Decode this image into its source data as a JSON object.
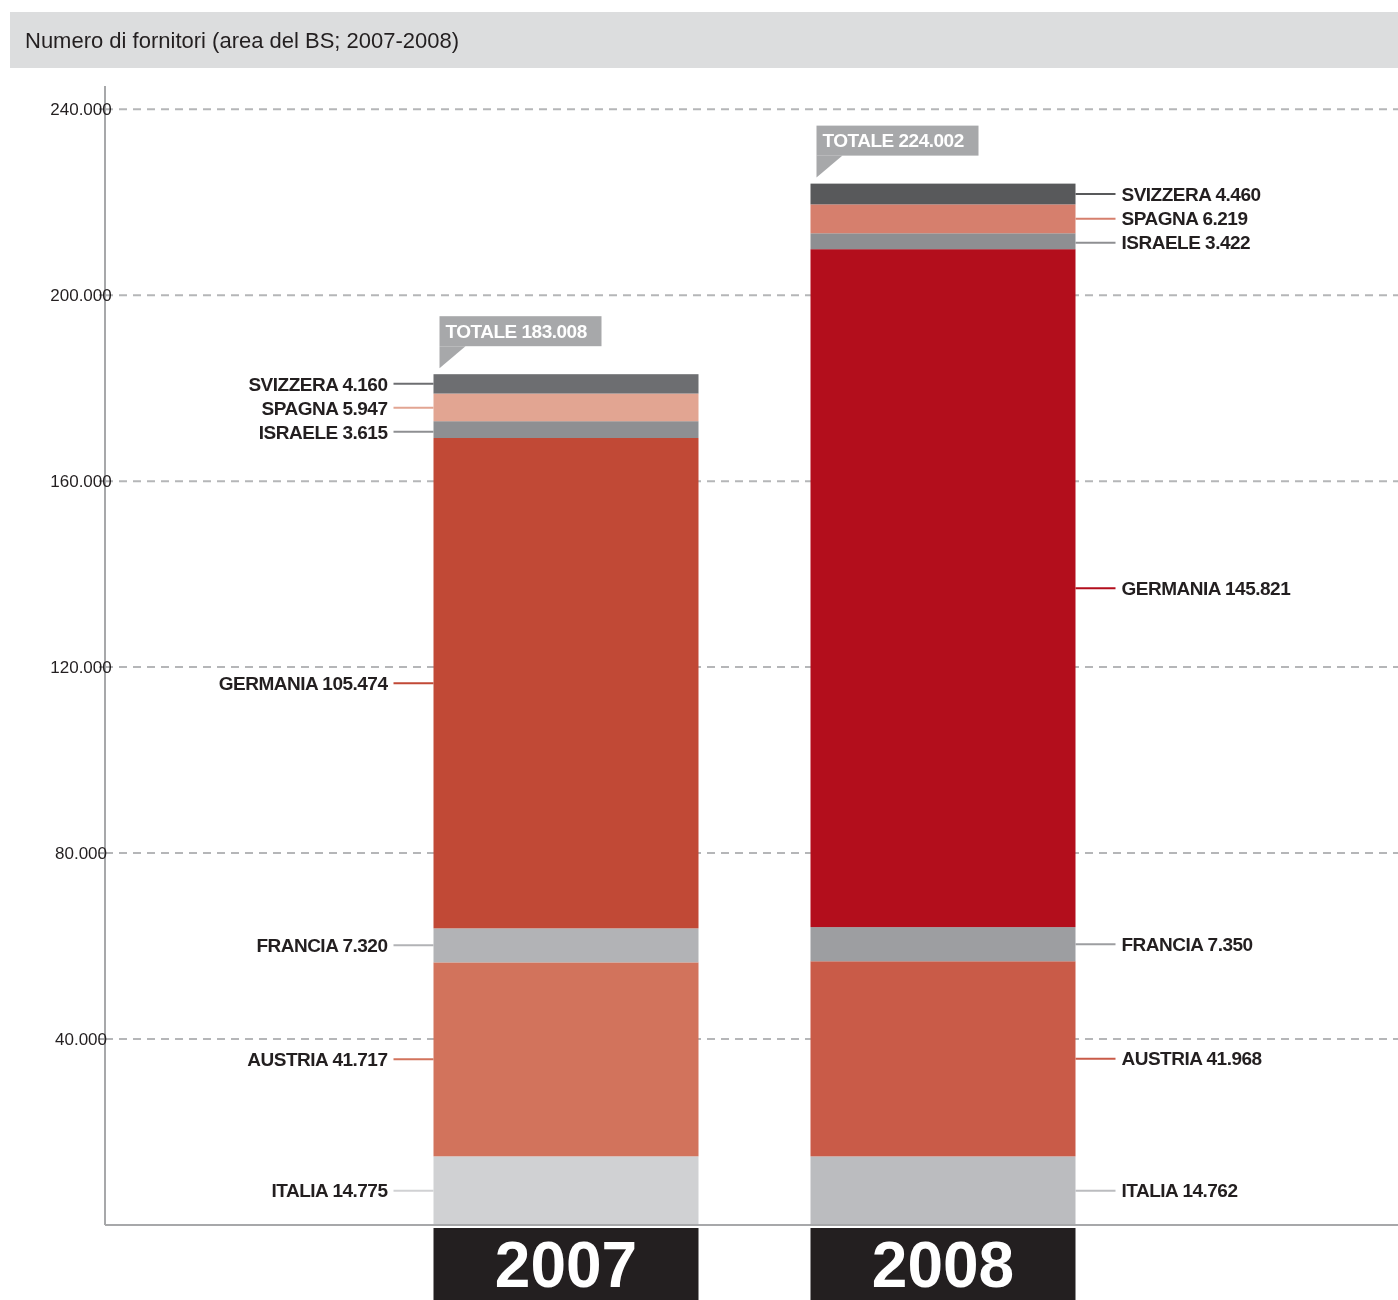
{
  "chart_data": {
    "type": "bar",
    "stacked": true,
    "title": "Numero di fornitori (area del BS; 2007-2008)",
    "categories": [
      "2007",
      "2008"
    ],
    "series": [
      {
        "name": "ITALIA",
        "values": [
          14775,
          14762
        ],
        "colors": [
          "#d0d1d3",
          "#bbbcbf"
        ],
        "value_labels": [
          "14.775",
          "14.762"
        ]
      },
      {
        "name": "AUSTRIA",
        "values": [
          41717,
          41968
        ],
        "colors": [
          "#d2735c",
          "#c95b48"
        ],
        "value_labels": [
          "41.717",
          "41.968"
        ]
      },
      {
        "name": "FRANCIA",
        "values": [
          7320,
          7350
        ],
        "colors": [
          "#b2b3b6",
          "#9d9ea1"
        ],
        "value_labels": [
          "7.320",
          "7.350"
        ]
      },
      {
        "name": "GERMANIA",
        "values": [
          105474,
          145821
        ],
        "colors": [
          "#c14936",
          "#b30e1c"
        ],
        "value_labels": [
          "105.474",
          "145.821"
        ]
      },
      {
        "name": "ISRAELE",
        "values": [
          3615,
          3422
        ],
        "colors": [
          "#8e8f92",
          "#8e8f92"
        ],
        "value_labels": [
          "3.615",
          "3.422"
        ]
      },
      {
        "name": "SPAGNA",
        "values": [
          5947,
          6219
        ],
        "colors": [
          "#e2a592",
          "#d67f6d"
        ],
        "value_labels": [
          "5.947",
          "6.219"
        ]
      },
      {
        "name": "SVIZZERA",
        "values": [
          4160,
          4460
        ],
        "colors": [
          "#6d6e71",
          "#58595b"
        ],
        "value_labels": [
          "4.160",
          "4.460"
        ]
      }
    ],
    "totals": [
      "TOTALE 183.008",
      "TOTALE 224.002"
    ],
    "ylim": [
      0,
      245000
    ],
    "yticks": [
      {
        "value": 40000,
        "label": "40.000"
      },
      {
        "value": 80000,
        "label": "80.000"
      },
      {
        "value": 120000,
        "label": "120.000"
      },
      {
        "value": 160000,
        "label": "160.000"
      },
      {
        "value": 200000,
        "label": "200.000"
      },
      {
        "value": 240000,
        "label": "240.000"
      }
    ],
    "grid": "y"
  }
}
